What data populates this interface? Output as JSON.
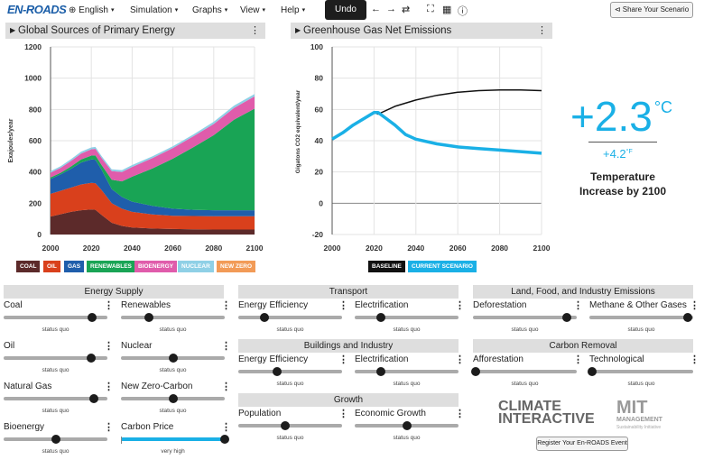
{
  "app": {
    "logo": "EN-ROADS"
  },
  "menu": {
    "language": "English",
    "simulation": "Simulation",
    "graphs": "Graphs",
    "view": "View",
    "help": "Help"
  },
  "toolbar": {
    "undo": "Undo",
    "share": "Share Your Scenario",
    "icons": [
      "undo-arrow-icon",
      "redo-arrow-icon",
      "refresh-icon",
      "fullscreen-icon",
      "table-icon",
      "info-icon"
    ]
  },
  "chart_data": [
    {
      "type": "area",
      "title": "Global Sources of Primary Energy",
      "ylabel": "Exajoules/year",
      "xlabel": "",
      "x": [
        2000,
        2005,
        2010,
        2015,
        2020,
        2022,
        2025,
        2030,
        2035,
        2040,
        2050,
        2060,
        2070,
        2080,
        2090,
        2100
      ],
      "xticks": [
        "2000",
        "2020",
        "2040",
        "2060",
        "2080",
        "2100"
      ],
      "yticks": [
        "0",
        "200",
        "400",
        "600",
        "800",
        "1000",
        "1200"
      ],
      "ylim": [
        0,
        1200
      ],
      "xlim": [
        2000,
        2100
      ],
      "series": [
        {
          "name": "COAL",
          "color": "#5c2a2a",
          "values": [
            115,
            130,
            145,
            155,
            160,
            158,
            125,
            75,
            55,
            45,
            38,
            35,
            33,
            32,
            32,
            32
          ]
        },
        {
          "name": "OIL",
          "color": "#d9401c",
          "values": [
            145,
            150,
            155,
            165,
            170,
            170,
            160,
            125,
            110,
            100,
            90,
            85,
            85,
            85,
            85,
            85
          ]
        },
        {
          "name": "GAS",
          "color": "#1f5eab",
          "values": [
            95,
            105,
            120,
            140,
            150,
            150,
            130,
            90,
            75,
            65,
            55,
            45,
            40,
            38,
            38,
            38
          ]
        },
        {
          "name": "RENEWABLES",
          "color": "#19a455",
          "values": [
            10,
            10,
            15,
            20,
            25,
            28,
            30,
            60,
            100,
            160,
            240,
            320,
            400,
            480,
            580,
            650
          ]
        },
        {
          "name": "BIOENERGY",
          "color": "#e05cab",
          "values": [
            30,
            32,
            35,
            38,
            40,
            42,
            45,
            55,
            60,
            62,
            66,
            68,
            70,
            72,
            75,
            78
          ]
        },
        {
          "name": "NUCLEAR",
          "color": "#8fd0e6",
          "values": [
            10,
            10,
            12,
            12,
            12,
            12,
            12,
            12,
            12,
            12,
            12,
            12,
            12,
            14,
            15,
            16
          ]
        },
        {
          "name": "NEW ZERO",
          "color": "#f29b57",
          "values": [
            0,
            0,
            0,
            0,
            0,
            0,
            0,
            0,
            0,
            0,
            0,
            0,
            0,
            0,
            0,
            0
          ]
        }
      ]
    },
    {
      "type": "line",
      "title": "Greenhouse Gas Net Emissions",
      "ylabel": "Gigatons CO2 equivalent/year",
      "xlabel": "",
      "xticks": [
        "2000",
        "2020",
        "2040",
        "2060",
        "2080",
        "2100"
      ],
      "yticks": [
        "-20",
        "0",
        "20",
        "40",
        "60",
        "80",
        "100"
      ],
      "ylim": [
        -20,
        100
      ],
      "xlim": [
        2000,
        2100
      ],
      "series": [
        {
          "name": "BASELINE",
          "color": "#111111",
          "x": [
            2000,
            2005,
            2010,
            2015,
            2020,
            2022,
            2030,
            2040,
            2050,
            2060,
            2070,
            2080,
            2090,
            2100
          ],
          "values": [
            41,
            45,
            50,
            54,
            58,
            57,
            62,
            66,
            69,
            71,
            72,
            72.5,
            72.5,
            72
          ]
        },
        {
          "name": "CURRENT SCENARIO",
          "color": "#1ab0e6",
          "x": [
            2000,
            2005,
            2010,
            2015,
            2020,
            2022,
            2025,
            2030,
            2035,
            2040,
            2050,
            2060,
            2070,
            2080,
            2090,
            2100
          ],
          "values": [
            41,
            45,
            50,
            54,
            58,
            58,
            55,
            50,
            44,
            41,
            38,
            36,
            35,
            34,
            33,
            32
          ]
        }
      ]
    }
  ],
  "temperature": {
    "celsius": "+2.3",
    "celsius_unit": "°C",
    "fahrenheit": "+4.2",
    "fahrenheit_unit": "°F",
    "label": "Temperature Increase by 2100"
  },
  "sections": {
    "energy_supply": "Energy Supply",
    "transport": "Transport",
    "land": "Land, Food, and Industry Emissions",
    "buildings": "Buildings and Industry",
    "carbon_removal": "Carbon Removal",
    "growth": "Growth"
  },
  "sliders": {
    "coal": {
      "label": "Coal",
      "status": "status quo",
      "value": 0.85
    },
    "renewables": {
      "label": "Renewables",
      "status": "status quo",
      "value": 0.27
    },
    "oil": {
      "label": "Oil",
      "status": "status quo",
      "value": 0.84
    },
    "nuclear": {
      "label": "Nuclear",
      "status": "status quo",
      "value": 0.5
    },
    "natural_gas": {
      "label": "Natural Gas",
      "status": "status quo",
      "value": 0.87
    },
    "new_zero_carbon": {
      "label": "New Zero-Carbon",
      "status": "status quo",
      "value": 0.5
    },
    "bioenergy": {
      "label": "Bioenergy",
      "status": "status quo",
      "value": 0.5
    },
    "carbon_price": {
      "label": "Carbon Price",
      "status": "very high",
      "value": 1.0
    },
    "transport_efficiency": {
      "label": "Energy Efficiency",
      "status": "status quo",
      "value": 0.25
    },
    "transport_electrification": {
      "label": "Electrification",
      "status": "status quo",
      "value": 0.25
    },
    "deforestation": {
      "label": "Deforestation",
      "status": "status quo",
      "value": 0.9
    },
    "methane": {
      "label": "Methane & Other Gases",
      "status": "status quo",
      "value": 0.95
    },
    "bldg_efficiency": {
      "label": "Energy Efficiency",
      "status": "status quo",
      "value": 0.37
    },
    "bldg_electrification": {
      "label": "Electrification",
      "status": "status quo",
      "value": 0.25
    },
    "afforestation": {
      "label": "Afforestation",
      "status": "status quo",
      "value": 0.03
    },
    "technological": {
      "label": "Technological",
      "status": "status quo",
      "value": 0.03
    },
    "population": {
      "label": "Population",
      "status": "status quo",
      "value": 0.45
    },
    "economic_growth": {
      "label": "Economic Growth",
      "status": "status quo",
      "value": 0.5
    }
  },
  "footer": {
    "ci_logo": "CLIMATE INTERACTIVE",
    "mit_logo": "MIT",
    "mit_sub": "MANAGEMENT",
    "mit_sub2": "Sustainability Initiative",
    "register": "Register Your En-ROADS Event"
  }
}
